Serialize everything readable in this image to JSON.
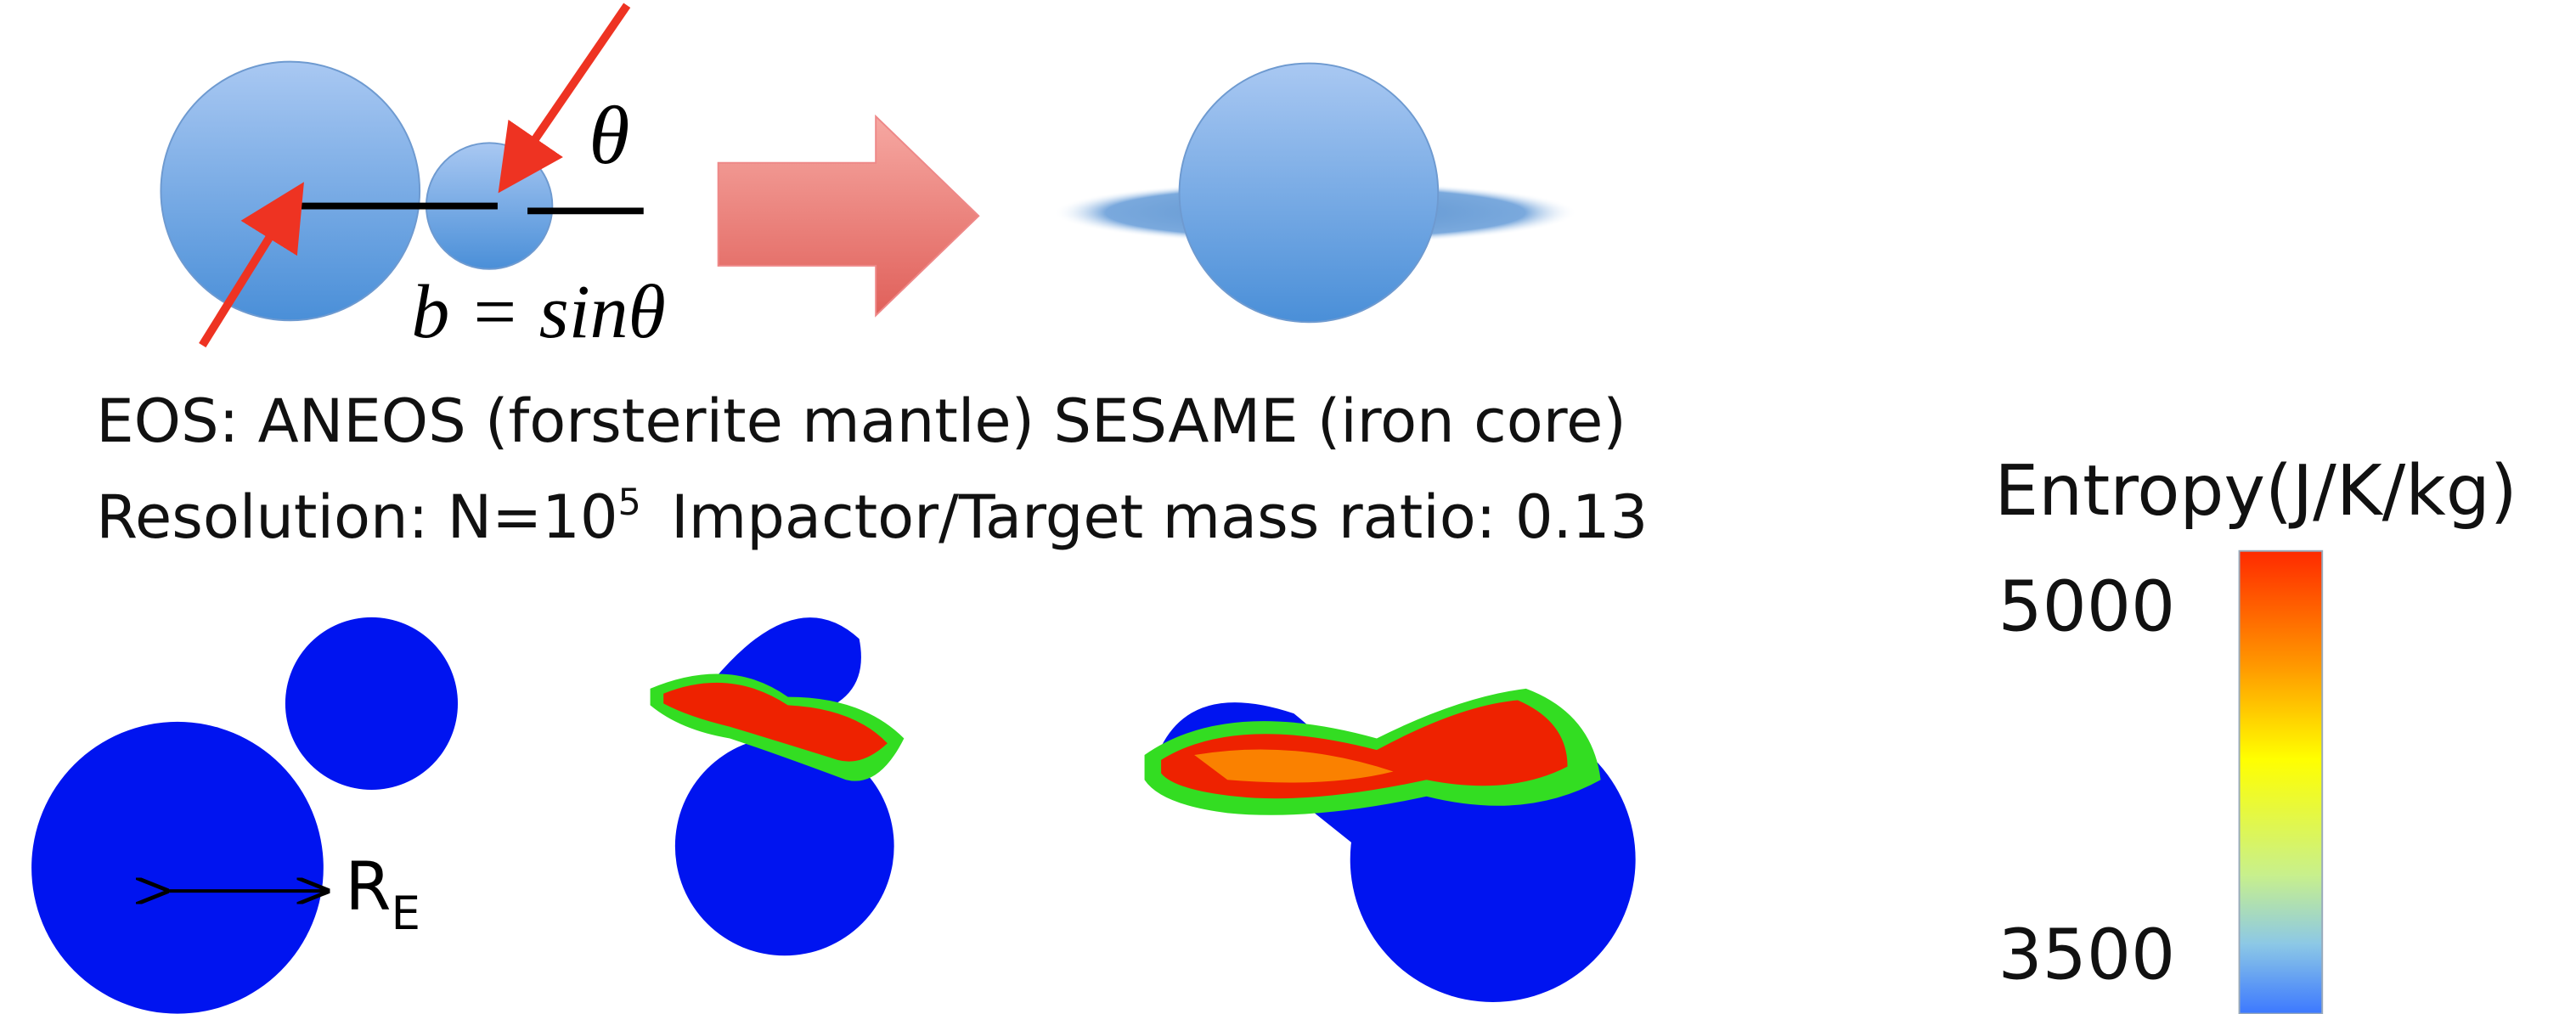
{
  "diagram": {
    "angle_label": "θ",
    "impact_parameter": "b = sinθ"
  },
  "caption": {
    "eos": "EOS: ANEOS (forsterite mantle)  SESAME (iron core)",
    "resolution": {
      "prefix": "Resolution: N=10",
      "exponent": "5",
      "rest": "Impactor/Target mass ratio: 0.13"
    }
  },
  "simulation": {
    "radius_label": {
      "base": "R",
      "subscript": "E"
    }
  },
  "colorbar": {
    "title": "Entropy(J/K/kg)",
    "ticks": [
      5000,
      3500
    ]
  }
}
